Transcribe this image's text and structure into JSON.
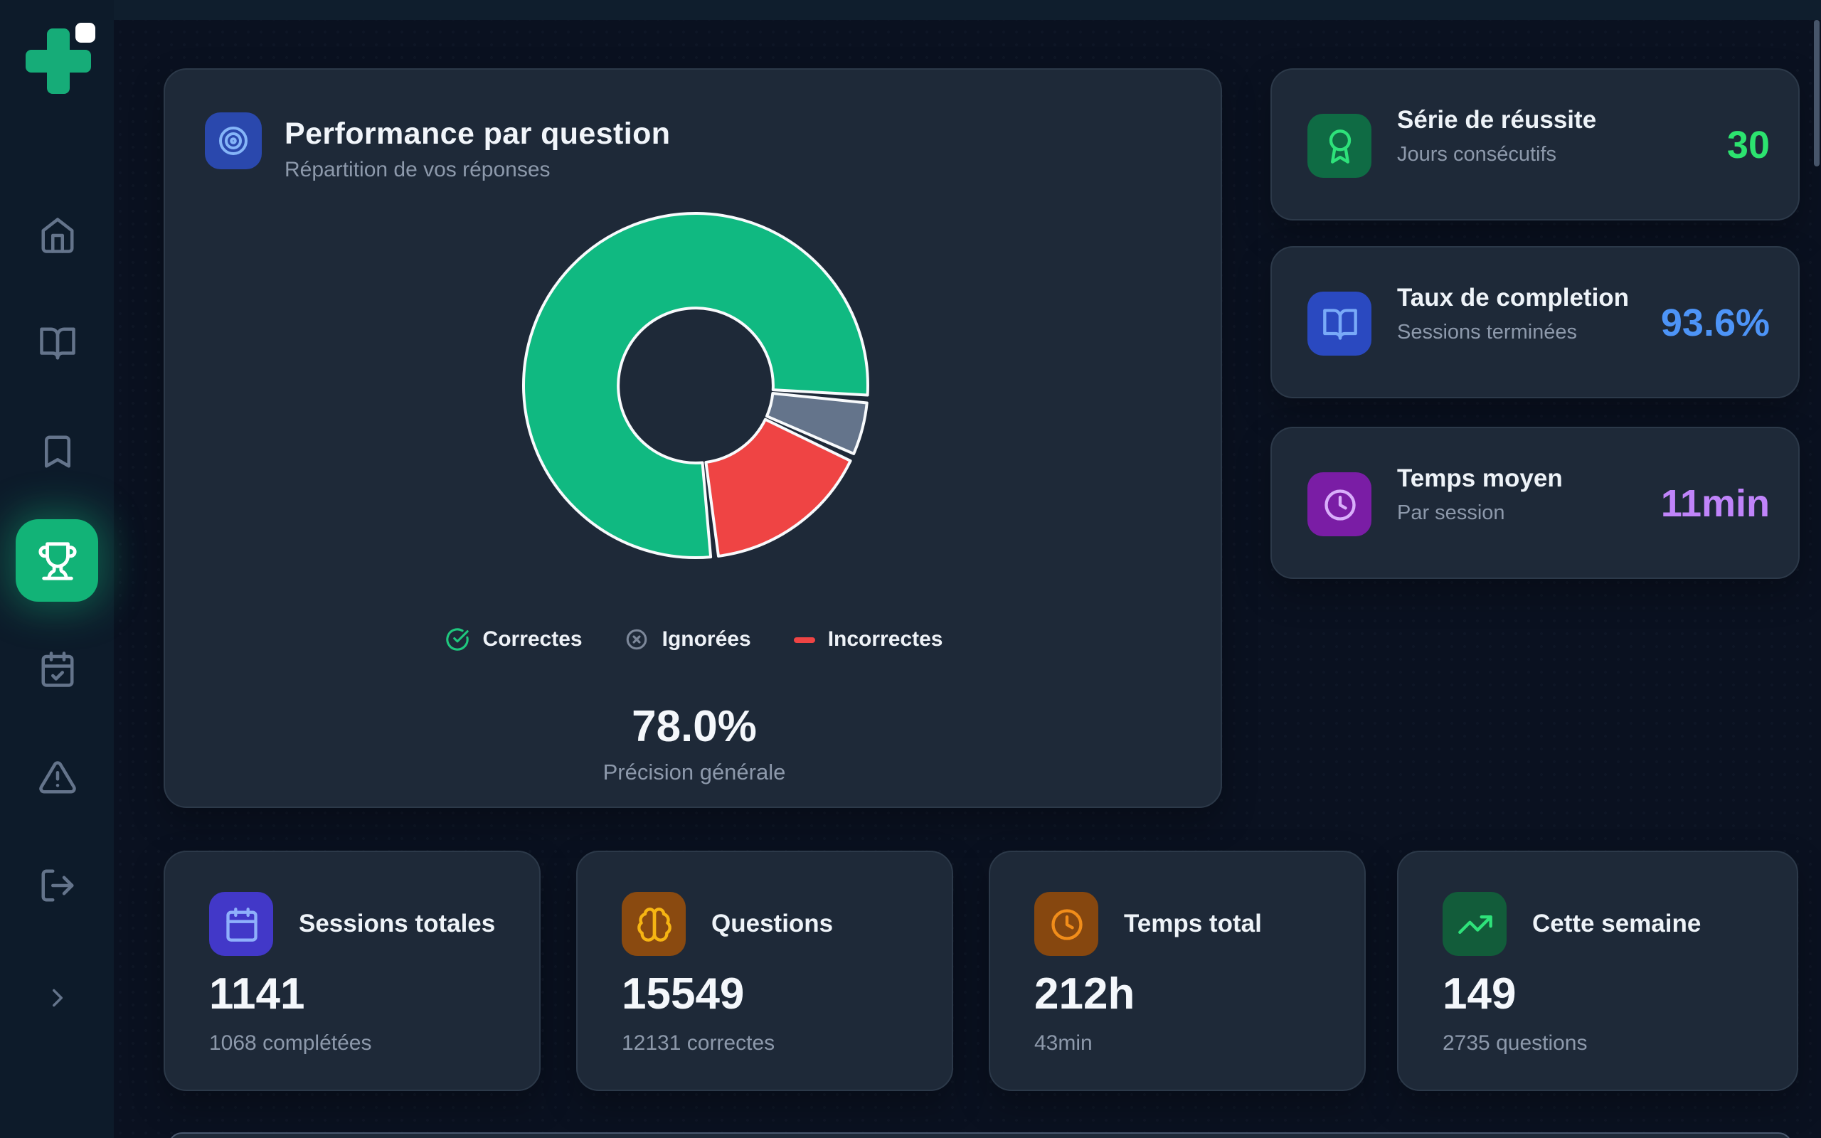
{
  "theme": {
    "sidebar_bg": "#0d1b2a",
    "content_bg": "#0a1120",
    "card_bg": "#1e2938",
    "card_border": "#2c3949",
    "text_primary": "#f1f5fa",
    "text_secondary": "#8d99ab",
    "brand_green": "#16ac78",
    "sidebar_icon": "#64748b"
  },
  "sidebar": {
    "active_item": "stats",
    "items": [
      "home",
      "library",
      "bookmarks",
      "stats",
      "planning",
      "alerts",
      "logout"
    ],
    "expand_chevron": "chevron-right"
  },
  "chart_card": {
    "title": "Performance par question",
    "subtitle": "Répartition de vos réponses",
    "header_icon_bg": "#2a48ad",
    "header_icon_color": "#85b5f8",
    "legend": [
      {
        "label": "Correctes",
        "color": "#1fc77e"
      },
      {
        "label": "Ignorées",
        "color": "#7c8799"
      },
      {
        "label": "Incorrectes",
        "color": "#ef4444"
      }
    ],
    "center_value": "78.0%",
    "center_label": "Précision générale"
  },
  "chart_data": {
    "type": "pie",
    "variant": "donut",
    "title": "Performance par question",
    "segments": [
      {
        "label": "Correctes",
        "percent": 78.0,
        "color": "#10b981"
      },
      {
        "label": "Ignorées",
        "percent": 5.6,
        "color": "#64748b"
      },
      {
        "label": "Incorrectes",
        "percent": 16.4,
        "color": "#ef4444"
      }
    ],
    "draw_order": [
      1,
      2,
      0
    ],
    "start_angle_deg": 94.5,
    "inner_radius_ratio": 0.45,
    "center_value": "78.0%",
    "center_label": "Précision générale",
    "legend_position": "bottom"
  },
  "side_stats": [
    {
      "title": "Série de réussite",
      "subtitle": "Jours consécutifs",
      "value": "30",
      "accent": "#2ce36f",
      "icon": "award-icon",
      "icon_bg": "#0f6b44",
      "icon_color": "#2ee27a"
    },
    {
      "title": "Taux de completion",
      "subtitle": "Sessions terminées",
      "value": "93.6%",
      "accent": "#4d94f7",
      "icon": "book-open-icon",
      "icon_bg": "#2a49c0",
      "icon_color": "#79aaf8"
    },
    {
      "title": "Temps moyen",
      "subtitle": "Par session",
      "value": "11min",
      "accent": "#c084fa",
      "icon": "clock-icon",
      "icon_bg": "#7a1da5",
      "icon_color": "#d9aefb"
    }
  ],
  "bottom_stats": [
    {
      "title": "Sessions totales",
      "value": "1141",
      "subtitle": "1068 complétées",
      "icon": "calendar-icon",
      "icon_bg": "#4238c8",
      "icon_color": "#8fb0fb"
    },
    {
      "title": "Questions",
      "value": "15549",
      "subtitle": "12131 correctes",
      "icon": "brain-icon",
      "icon_bg": "#8a4a10",
      "icon_color": "#f6b513"
    },
    {
      "title": "Temps total",
      "value": "212h",
      "subtitle": "43min",
      "icon": "clock-icon",
      "icon_bg": "#86470f",
      "icon_color": "#f18d1a"
    },
    {
      "title": "Cette semaine",
      "value": "149",
      "subtitle": "2735 questions",
      "icon": "trending-up-icon",
      "icon_bg": "#125c3a",
      "icon_color": "#2ee27a"
    }
  ]
}
